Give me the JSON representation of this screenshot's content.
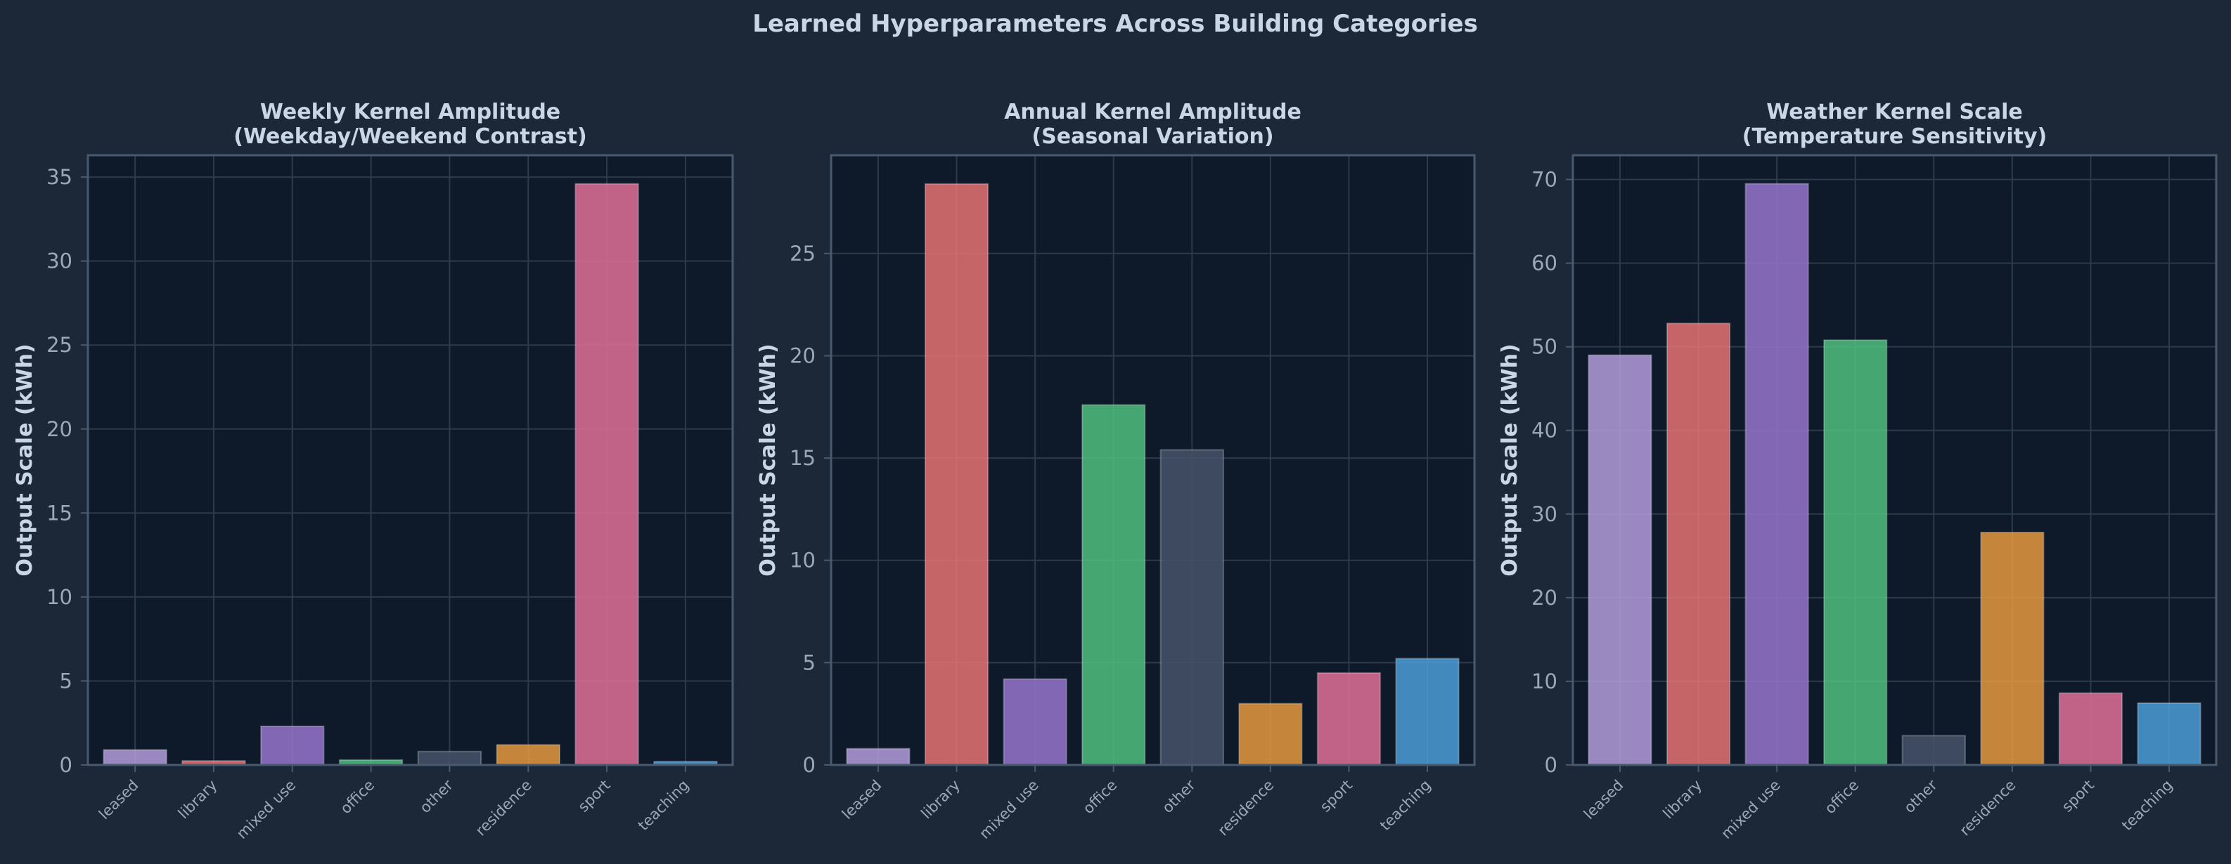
{
  "figure": {
    "title": "Learned Hyperparameters Across Building Categories"
  },
  "colors": {
    "figure_bg": "#1c2838",
    "axes_bg": "#0e1a2a",
    "grid": "#2b3a4d",
    "spine": "#4a5a6e",
    "title_text": "#c9d6e6",
    "tick_text": "#9aa8b9"
  },
  "chart_data": [
    {
      "type": "bar",
      "title": "Weekly Kernel Amplitude\n(Weekday/Weekend Contrast)",
      "xlabel": "",
      "ylabel": "Output Scale (kWh)",
      "categories": [
        "leased",
        "library",
        "mixed use",
        "office",
        "other",
        "residence",
        "sport",
        "teaching"
      ],
      "values": [
        0.9,
        0.25,
        2.3,
        0.3,
        0.8,
        1.2,
        34.6,
        0.2
      ],
      "colors": [
        "#b39ddb",
        "#e57373",
        "#9575cd",
        "#4fbf7f",
        "#455468",
        "#e59a3f",
        "#e07098",
        "#4b9fd8"
      ],
      "ylim": [
        0,
        36.3
      ],
      "yticks": [
        0,
        5,
        10,
        15,
        20,
        25,
        30,
        35
      ],
      "grid": true
    },
    {
      "type": "bar",
      "title": "Annual Kernel Amplitude\n(Seasonal Variation)",
      "xlabel": "",
      "ylabel": "Output Scale (kWh)",
      "categories": [
        "leased",
        "library",
        "mixed use",
        "office",
        "other",
        "residence",
        "sport",
        "teaching"
      ],
      "values": [
        0.8,
        28.4,
        4.2,
        17.6,
        15.4,
        3.0,
        4.5,
        5.2
      ],
      "colors": [
        "#b39ddb",
        "#e57373",
        "#9575cd",
        "#4fbf7f",
        "#455468",
        "#e59a3f",
        "#e07098",
        "#4b9fd8"
      ],
      "ylim": [
        0,
        29.8
      ],
      "yticks": [
        0,
        5,
        10,
        15,
        20,
        25
      ],
      "grid": true
    },
    {
      "type": "bar",
      "title": "Weather Kernel Scale\n(Temperature Sensitivity)",
      "xlabel": "",
      "ylabel": "Output Scale (kWh)",
      "categories": [
        "leased",
        "library",
        "mixed use",
        "office",
        "other",
        "residence",
        "sport",
        "teaching"
      ],
      "values": [
        49.0,
        52.8,
        69.5,
        50.8,
        3.5,
        27.8,
        8.6,
        7.4
      ],
      "colors": [
        "#b39ddb",
        "#e57373",
        "#9575cd",
        "#4fbf7f",
        "#455468",
        "#e59a3f",
        "#e07098",
        "#4b9fd8"
      ],
      "ylim": [
        0,
        72.9
      ],
      "yticks": [
        0,
        10,
        20,
        30,
        40,
        50,
        60,
        70
      ],
      "grid": true
    }
  ]
}
